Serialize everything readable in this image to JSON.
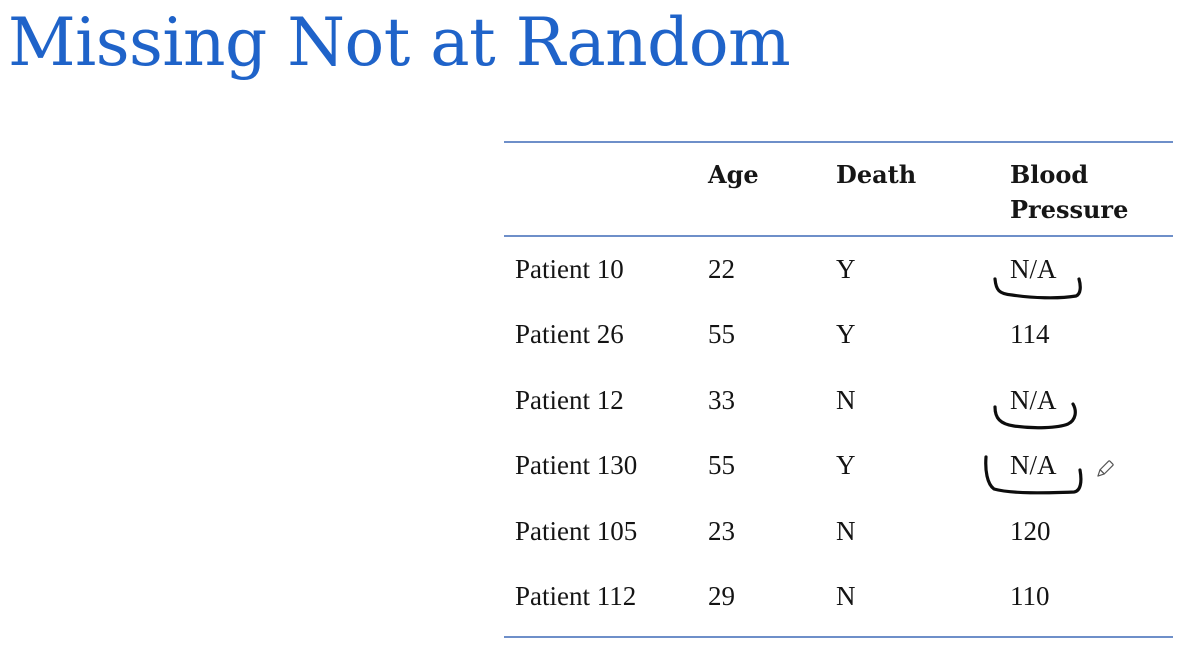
{
  "slide": {
    "title": "Missing Not at Random"
  },
  "table": {
    "columns": [
      "",
      "Age",
      "Death",
      "Blood Pressure"
    ],
    "header": {
      "age": "Age",
      "death": "Death",
      "bp_line1": "Blood",
      "bp_line2": "Pressure"
    },
    "rows": [
      {
        "patient": "Patient 10",
        "age": "22",
        "death": "Y",
        "blood_pressure": "N/A"
      },
      {
        "patient": "Patient 26",
        "age": "55",
        "death": "Y",
        "blood_pressure": "114"
      },
      {
        "patient": "Patient 12",
        "age": "33",
        "death": "N",
        "blood_pressure": "N/A"
      },
      {
        "patient": "Patient 130",
        "age": "55",
        "death": "Y",
        "blood_pressure": "N/A"
      },
      {
        "patient": "Patient 105",
        "age": "23",
        "death": "N",
        "blood_pressure": "120"
      },
      {
        "patient": "Patient 112",
        "age": "29",
        "death": "N",
        "blood_pressure": "110"
      }
    ]
  },
  "colors": {
    "title": "#1f63c9",
    "rule": "#6e8fc9",
    "text": "#141414",
    "ink": "#0d0d0d"
  },
  "icons": [
    "pencil-cursor-icon"
  ]
}
